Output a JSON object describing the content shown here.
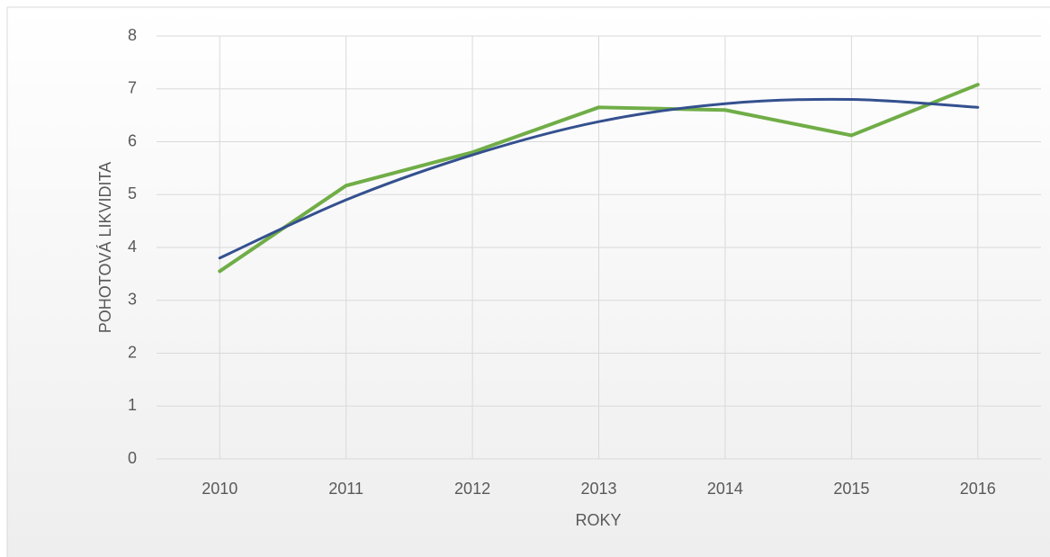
{
  "chart_data": {
    "type": "line",
    "x_label": "ROKY",
    "y_label": "POHOTOVÁ LIKVIDITA",
    "categories": [
      "2010",
      "2011",
      "2012",
      "2013",
      "2014",
      "2015",
      "2016"
    ],
    "series": [
      {
        "color": "#70ad47",
        "values": [
          3.55,
          5.17,
          5.8,
          6.65,
          6.6,
          6.12,
          7.08
        ]
      },
      {
        "color": "#34508f",
        "smooth": true,
        "values": [
          3.8,
          4.9,
          5.75,
          6.38,
          6.72,
          6.8,
          6.65
        ]
      }
    ],
    "ylim": [
      0,
      8
    ],
    "yticks": [
      0,
      1,
      2,
      3,
      4,
      5,
      6,
      7,
      8
    ],
    "grid": true
  }
}
